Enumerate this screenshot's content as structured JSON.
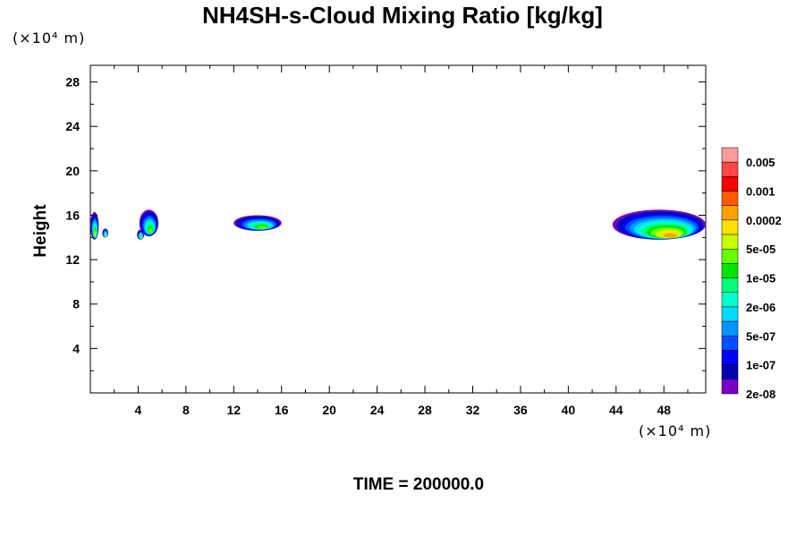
{
  "chart_data": {
    "type": "heatmap",
    "title": "NH4SH-s-Cloud Mixing Ratio [kg/kg]",
    "ylabel": "Height",
    "y_unit": "(×10⁴ m)",
    "x_unit": "(×10⁴ m)",
    "xlim": [
      0,
      51.5
    ],
    "ylim": [
      0,
      29.5
    ],
    "x_ticks": [
      "4",
      "8",
      "12",
      "16",
      "20",
      "24",
      "28",
      "32",
      "36",
      "40",
      "44",
      "48"
    ],
    "y_ticks": [
      "4",
      "8",
      "12",
      "16",
      "20",
      "24",
      "28"
    ],
    "colorbar": {
      "labels": [
        "0.005",
        "0.001",
        "0.0002",
        "5e-05",
        "1e-05",
        "2e-06",
        "5e-07",
        "1e-07",
        "2e-08"
      ],
      "colors": [
        "#ff9a9a",
        "#ff4646",
        "#ff0000",
        "#ff5a00",
        "#ffa000",
        "#ffe000",
        "#c8ff00",
        "#64ff00",
        "#00e600",
        "#00ff78",
        "#00ffcc",
        "#00dcff",
        "#0096ff",
        "#0050ff",
        "#0000ff",
        "#0000b4",
        "#7800c8"
      ]
    },
    "regions": [
      {
        "x": [
          0.0,
          0.7
        ],
        "y": [
          13.8,
          16.3
        ],
        "level": "5e-05"
      },
      {
        "x": [
          1.0,
          1.5
        ],
        "y": [
          14.0,
          14.8
        ],
        "level": "5e-05"
      },
      {
        "x": [
          3.9,
          4.5
        ],
        "y": [
          13.8,
          14.7
        ],
        "level": "5e-05"
      },
      {
        "x": [
          4.1,
          5.7
        ],
        "y": [
          14.1,
          16.5
        ],
        "level": "1e-05"
      },
      {
        "x": [
          12.0,
          16.0
        ],
        "y": [
          14.6,
          16.0
        ],
        "level": "1e-05"
      },
      {
        "x": [
          43.7,
          51.5
        ],
        "y": [
          13.8,
          16.5
        ],
        "level": "0.0002"
      }
    ],
    "footer": "TIME = 200000.0"
  }
}
